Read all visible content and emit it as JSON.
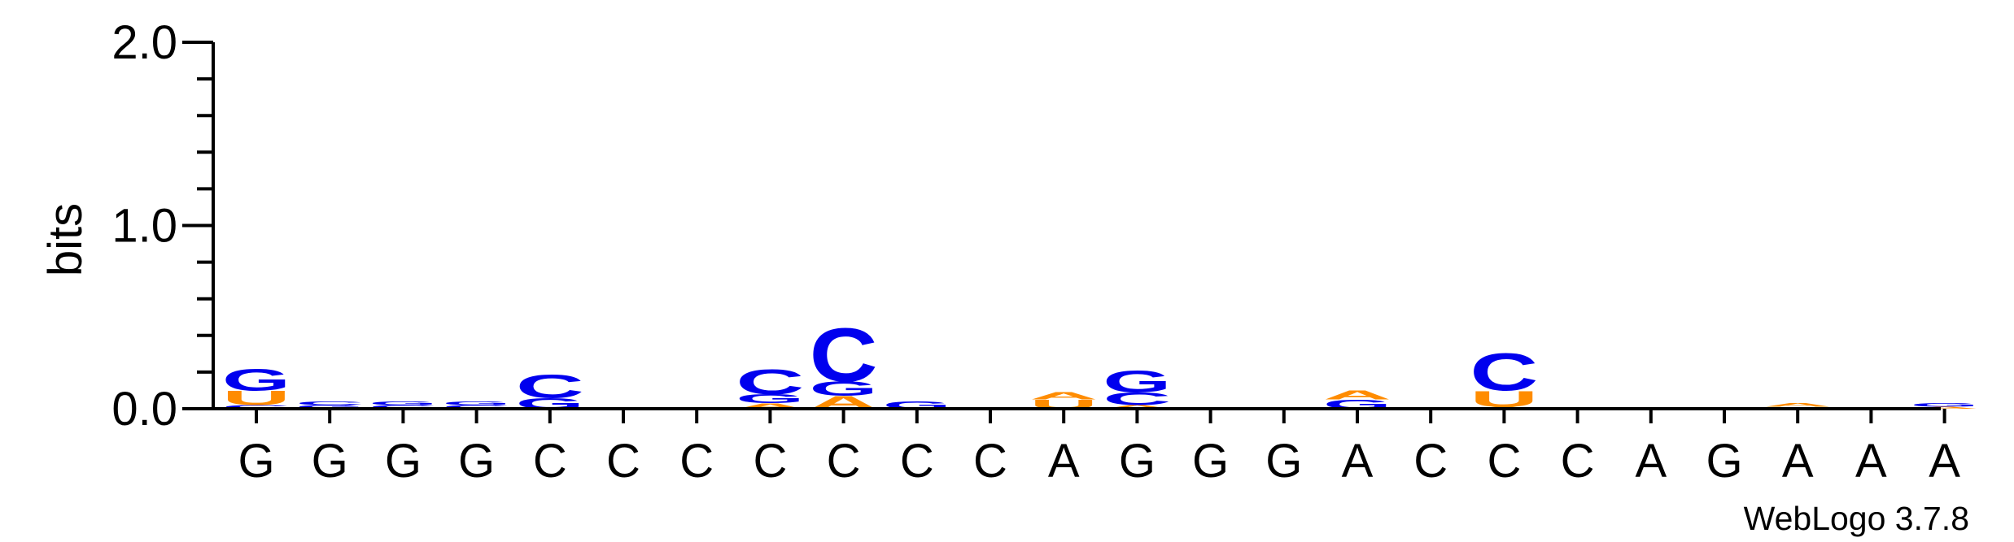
{
  "chart_data": {
    "type": "sequence-logo",
    "ylabel": "bits",
    "ylim": [
      0,
      2.0
    ],
    "yticks": [
      "0.0",
      "1.0",
      "2.0"
    ],
    "ytick_values": [
      0,
      1,
      2
    ],
    "colors": {
      "C": "#0000ee",
      "G": "#0000ee",
      "A": "#ff8c00",
      "U": "#ff8c00"
    },
    "credit": "WebLogo 3.7.8",
    "positions": [
      {
        "label": "G",
        "stack": [
          [
            "C",
            0.02
          ],
          [
            "U",
            0.08
          ],
          [
            "G",
            0.12
          ]
        ]
      },
      {
        "label": "G",
        "stack": [
          [
            "G",
            0.02
          ],
          [
            "C",
            0.02
          ]
        ]
      },
      {
        "label": "G",
        "stack": [
          [
            "C",
            0.02
          ],
          [
            "G",
            0.02
          ]
        ]
      },
      {
        "label": "G",
        "stack": [
          [
            "C",
            0.02
          ],
          [
            "G",
            0.02
          ]
        ]
      },
      {
        "label": "C",
        "stack": [
          [
            "G",
            0.06
          ],
          [
            "C",
            0.13
          ]
        ]
      },
      {
        "label": "C",
        "stack": [
          [
            "C",
            0.005
          ]
        ]
      },
      {
        "label": "C",
        "stack": [
          [
            "C",
            0.005
          ]
        ]
      },
      {
        "label": "C",
        "stack": [
          [
            "A",
            0.03
          ],
          [
            "G",
            0.05
          ],
          [
            "C",
            0.14
          ]
        ]
      },
      {
        "label": "C",
        "stack": [
          [
            "A",
            0.07
          ],
          [
            "G",
            0.08
          ],
          [
            "C",
            0.3
          ]
        ]
      },
      {
        "label": "C",
        "stack": [
          [
            "G",
            0.04
          ]
        ]
      },
      {
        "label": "C",
        "stack": [
          [
            "G",
            0.005
          ]
        ]
      },
      {
        "label": "A",
        "stack": [
          [
            "U",
            0.05
          ],
          [
            "A",
            0.04
          ]
        ]
      },
      {
        "label": "G",
        "stack": [
          [
            "A",
            0.02
          ],
          [
            "C",
            0.07
          ],
          [
            "G",
            0.12
          ]
        ]
      },
      {
        "label": "G",
        "stack": []
      },
      {
        "label": "G",
        "stack": []
      },
      {
        "label": "A",
        "stack": [
          [
            "G",
            0.05
          ],
          [
            "A",
            0.05
          ]
        ]
      },
      {
        "label": "C",
        "stack": []
      },
      {
        "label": "C",
        "stack": [
          [
            "A",
            0.01
          ],
          [
            "U",
            0.09
          ],
          [
            "C",
            0.21
          ]
        ]
      },
      {
        "label": "C",
        "stack": []
      },
      {
        "label": "A",
        "stack": []
      },
      {
        "label": "G",
        "stack": []
      },
      {
        "label": "A",
        "stack": [
          [
            "G",
            0.01
          ],
          [
            "A",
            0.02
          ]
        ]
      },
      {
        "label": "A",
        "stack": []
      },
      {
        "label": "A",
        "stack": [
          [
            "A",
            0.01
          ],
          [
            "G",
            0.02
          ]
        ]
      }
    ]
  }
}
